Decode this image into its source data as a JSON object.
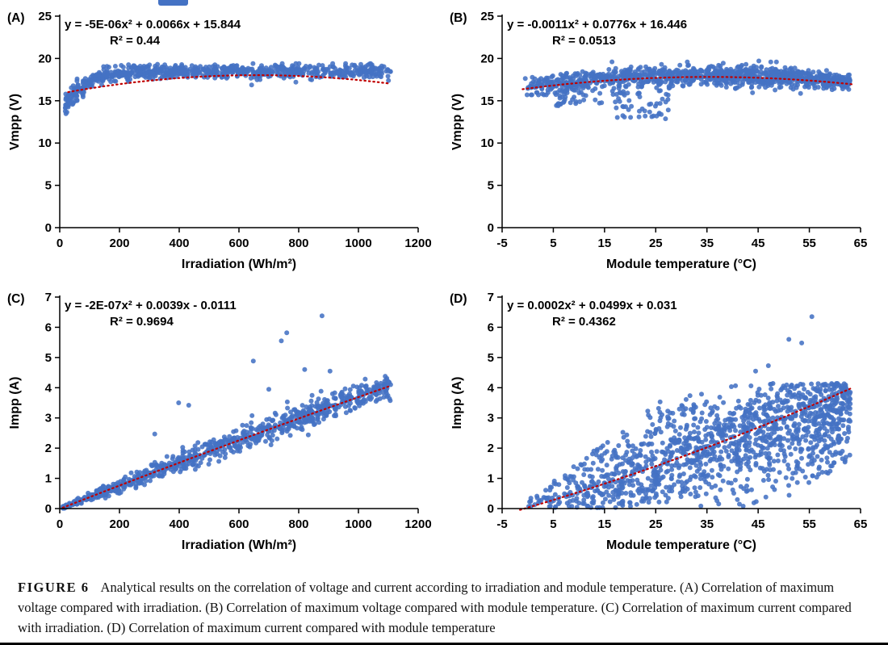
{
  "decor": {
    "top_fragment_color": "#4472C4"
  },
  "style": {
    "point_color": "#4472C4",
    "trend_color": "#C00000",
    "axis_color": "#000000"
  },
  "caption": {
    "label": "FIGURE 6",
    "text": "Analytical results on the correlation of voltage and current according to irradiation and module temperature. (A) Correlation of maximum voltage compared with irradiation. (B) Correlation of maximum voltage compared with module temperature. (C) Correlation of maximum current compared with irradiation. (D) Correlation of maximum current compared with module temperature"
  },
  "chart_data": [
    {
      "id": "A",
      "panel_label": "(A)",
      "type": "scatter",
      "equation": "y = -5E-06x² + 0.0066x + 15.844",
      "r2": "R² = 0.44",
      "xlabel": "Irradiation (Wh/m²)",
      "ylabel": "Vmpp (V)",
      "xlim": [
        0,
        1200
      ],
      "ylim": [
        0,
        25
      ],
      "xticks": [
        0,
        200,
        400,
        600,
        800,
        1000,
        1200
      ],
      "yticks": [
        0,
        5,
        10,
        15,
        20,
        25
      ],
      "trend": {
        "a": -5e-06,
        "b": 0.0066,
        "c": 15.844,
        "x_min": 28,
        "x_max": 1100
      },
      "generator": {
        "kind": "sat_band",
        "seed": 11,
        "n": 780,
        "x_min": 18,
        "x_max": 1108,
        "x_pow": 1.2,
        "sat_max": 18.45,
        "sat_drop": 5.8,
        "tau": 62,
        "noise_sd": 0.42,
        "low_x": 80,
        "low_mult": 1.5,
        "y_clamp": [
          12.7,
          19.4
        ]
      },
      "outliers": []
    },
    {
      "id": "B",
      "panel_label": "(B)",
      "type": "scatter",
      "equation": "y = -0.0011x² + 0.0776x + 16.446",
      "r2": "R² = 0.0513",
      "xlabel": "Module temperature (°C)",
      "ylabel": "Vmpp (V)",
      "xlim": [
        -5,
        65
      ],
      "ylim": [
        0,
        25
      ],
      "xticks": [
        -5,
        5,
        15,
        25,
        35,
        45,
        55,
        65
      ],
      "yticks": [
        0,
        5,
        10,
        15,
        20,
        25
      ],
      "trend": {
        "a": -0.0011,
        "b": 0.0776,
        "c": 16.446,
        "x_min": -1,
        "x_max": 63.5
      },
      "generator": {
        "kind": "temp_band",
        "seed": 22,
        "n": 1050,
        "x_min": -1,
        "x_max": 63,
        "x_pow": 0.8,
        "center_offset": 0.2,
        "noise_sd": 0.6,
        "y_clamp": [
          15.7,
          19.7
        ],
        "clusters": [
          {
            "n": 26,
            "x": [
              5.5,
              9.5
            ],
            "y": [
              14.2,
              16.6
            ]
          },
          {
            "n": 22,
            "x": [
              16.5,
              20.5
            ],
            "y": [
              13.0,
              16.2
            ]
          },
          {
            "n": 30,
            "x": [
              21.5,
              27.5
            ],
            "y": [
              12.8,
              16.3
            ]
          },
          {
            "n": 8,
            "x": [
              10,
              15
            ],
            "y": [
              14.6,
              16.2
            ]
          }
        ]
      },
      "outliers": []
    },
    {
      "id": "C",
      "panel_label": "(C)",
      "type": "scatter",
      "equation": "y = -2E-07x² + 0.0039x - 0.0111",
      "r2": "R² = 0.9694",
      "xlabel": "Irradiation (Wh/m²)",
      "ylabel": "Impp (A)",
      "xlim": [
        0,
        1200
      ],
      "ylim": [
        0,
        7
      ],
      "xticks": [
        0,
        200,
        400,
        600,
        800,
        1000,
        1200
      ],
      "yticks": [
        0,
        1,
        2,
        3,
        4,
        5,
        6,
        7
      ],
      "trend": {
        "a": -2e-07,
        "b": 0.0039,
        "c": -0.0111,
        "x_min": 10,
        "x_max": 1100
      },
      "generator": {
        "kind": "linear_fan",
        "seed": 33,
        "n": 860,
        "x_min": 8,
        "x_max": 1108,
        "sd_base": 0.02,
        "sd_slope": 0.00042,
        "sd_taper1": 1.15,
        "sd_taper2": 1400,
        "y_min": 0.01
      },
      "outliers": [
        [
          318,
          2.47
        ],
        [
          398,
          3.5
        ],
        [
          432,
          3.42
        ],
        [
          648,
          4.88
        ],
        [
          700,
          3.95
        ],
        [
          742,
          5.55
        ],
        [
          760,
          5.82
        ],
        [
          878,
          6.38
        ],
        [
          820,
          4.6
        ],
        [
          905,
          4.55
        ]
      ]
    },
    {
      "id": "D",
      "panel_label": "(D)",
      "type": "scatter",
      "equation": "y = 0.0002x² + 0.0499x + 0.031",
      "r2": "R² = 0.4362",
      "xlabel": "Module temperature (°C)",
      "ylabel": "Impp (A)",
      "xlim": [
        -5,
        65
      ],
      "ylim": [
        0,
        7
      ],
      "xticks": [
        -5,
        5,
        15,
        25,
        35,
        45,
        55,
        65
      ],
      "yticks": [
        0,
        1,
        2,
        3,
        4,
        5,
        6,
        7
      ],
      "trend": {
        "a": 0.0002,
        "b": 0.0499,
        "c": 0.031,
        "x_min": -1.5,
        "x_max": 63.5
      },
      "generator": {
        "kind": "temp_fan",
        "seed": 44,
        "n": 1380,
        "x_min": -1,
        "x_max": 63,
        "x_pow": 0.62,
        "noise_sd": 1.0,
        "hi_base": 0.3,
        "hi_slope": 0.125,
        "hi_cap": 4.15,
        "lo_slope": 0.1,
        "lo_start": 47,
        "y_floor": 0.03
      },
      "outliers": [
        [
          55.5,
          6.35
        ],
        [
          51,
          5.6
        ],
        [
          53.5,
          5.48
        ],
        [
          47,
          4.73
        ],
        [
          44.5,
          4.55
        ],
        [
          62,
          3.9
        ]
      ]
    }
  ]
}
